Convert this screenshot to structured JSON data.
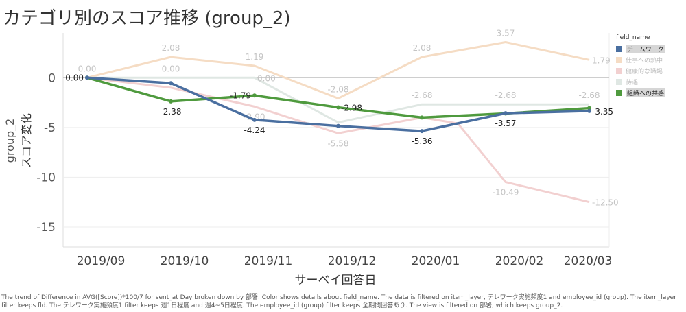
{
  "title": "カテゴリ別のスコア推移 (group_2)",
  "chart_data": {
    "type": "line",
    "xlabel": "サーベイ回答日",
    "ylabel_line1": "group_2",
    "ylabel_line2": "スコア変化",
    "categories": [
      "2019/09",
      "2019/10",
      "2019/11",
      "2019/12",
      "2020/01",
      "2020/02",
      "2020/03"
    ],
    "y_ticks": [
      "0",
      "-5",
      "-10",
      "-15"
    ],
    "ylim": [
      -17,
      4.5
    ],
    "grid": true,
    "legend_position": "right",
    "series": [
      {
        "name": "仕事への熱中",
        "color": "#f5dcc4",
        "highlighted": false,
        "points": [
          [
            0,
            0.0
          ],
          [
            1,
            2.08
          ],
          [
            2,
            1.19
          ],
          [
            3,
            -2.08
          ],
          [
            4,
            2.08
          ],
          [
            5,
            3.57
          ],
          [
            6,
            1.79
          ]
        ],
        "labels": [
          {
            "i": 0,
            "text": "0.00",
            "pos": "above"
          },
          {
            "i": 1,
            "text": "2.08",
            "pos": "above"
          },
          {
            "i": 2,
            "text": "1.19",
            "pos": "above"
          },
          {
            "i": 3,
            "text": "-2.08",
            "pos": "above"
          },
          {
            "i": 4,
            "text": "2.08",
            "pos": "above"
          },
          {
            "i": 5,
            "text": "3.57",
            "pos": "above"
          },
          {
            "i": 6,
            "text": "1.79",
            "pos": "right"
          }
        ]
      },
      {
        "name": "健康的な職場",
        "color": "#f2d0d0",
        "highlighted": false,
        "points": [
          [
            0,
            0.0
          ],
          [
            1,
            -1.0
          ],
          [
            2,
            -2.9
          ],
          [
            3,
            -5.58
          ],
          [
            4,
            -4.0
          ],
          [
            4.43,
            -4.6
          ],
          [
            5,
            -10.49
          ],
          [
            6,
            -12.5
          ]
        ],
        "labels": [
          {
            "i": 2,
            "text": "-2.90",
            "pos": "below"
          },
          {
            "i": 3,
            "text": "-5.58",
            "pos": "below"
          },
          {
            "i": 6,
            "text": "-10.49",
            "pos": "below",
            "x": 5
          },
          {
            "i": 7,
            "text": "-12.50",
            "pos": "right"
          }
        ]
      },
      {
        "name": "待遇",
        "color": "#dfe7e3",
        "highlighted": false,
        "points": [
          [
            0,
            0.0
          ],
          [
            1,
            0.0
          ],
          [
            2,
            0.0
          ],
          [
            3,
            -4.5
          ],
          [
            4,
            -2.68
          ],
          [
            5,
            -2.68
          ],
          [
            6,
            -2.68
          ]
        ],
        "labels": [
          {
            "i": 1,
            "text": "0.00",
            "pos": "above"
          },
          {
            "i": 2,
            "text": "0.00",
            "pos": "right"
          },
          {
            "i": 4,
            "text": "-2.68",
            "pos": "above"
          },
          {
            "i": 5,
            "text": "-2.68",
            "pos": "above"
          },
          {
            "i": 6,
            "text": "-2.68",
            "pos": "above"
          }
        ]
      },
      {
        "name": "組織への共感",
        "color": "#4f9a3e",
        "highlighted": true,
        "points": [
          [
            0,
            0.0
          ],
          [
            1,
            -2.38
          ],
          [
            2,
            -1.79
          ],
          [
            3,
            -2.98
          ],
          [
            4,
            -4.0
          ],
          [
            5,
            -3.6
          ],
          [
            6,
            -3.05
          ]
        ],
        "labels": [
          {
            "i": 1,
            "text": "-2.38",
            "pos": "below"
          },
          {
            "i": 2,
            "text": "-1.79",
            "pos": "left"
          },
          {
            "i": 3,
            "text": "-2.98",
            "pos": "right"
          }
        ]
      },
      {
        "name": "チームワーク",
        "color": "#4a6fa0",
        "highlighted": true,
        "points": [
          [
            0,
            0.0
          ],
          [
            1,
            -0.55
          ],
          [
            2,
            -4.24
          ],
          [
            3,
            -4.85
          ],
          [
            4,
            -5.36
          ],
          [
            5,
            -3.57
          ],
          [
            6,
            -3.35
          ]
        ],
        "labels": [
          {
            "i": 0,
            "text": "0.00",
            "pos": "left"
          },
          {
            "i": 2,
            "text": "-4.24",
            "pos": "below"
          },
          {
            "i": 4,
            "text": "-5.36",
            "pos": "below"
          },
          {
            "i": 5,
            "text": "-3.57",
            "pos": "below"
          },
          {
            "i": 6,
            "text": "-3.35",
            "pos": "right"
          }
        ]
      }
    ]
  },
  "legend": {
    "title": "field_name",
    "items": [
      {
        "label": "チームワーク",
        "color": "#4a6fa0",
        "highlighted": true
      },
      {
        "label": "仕事への熱中",
        "color": "#f5dcc4",
        "highlighted": false
      },
      {
        "label": "健康的な職場",
        "color": "#f2d0d0",
        "highlighted": false
      },
      {
        "label": "待遇",
        "color": "#dfe7e3",
        "highlighted": false
      },
      {
        "label": "組織への共感",
        "color": "#4f9a3e",
        "highlighted": true
      }
    ]
  },
  "footer": "The trend of Difference in AVG([Score])*100/7 for sent_at Day broken down by 部署.  Color shows details about field_name. The data is filtered on item_layer, テレワーク実施頻度1 and employee_id (group). The item_layer filter keeps fld. The テレワーク実施頻度1 filter keeps 週1日程度 and 週4~5日程度. The employee_id (group) filter keeps 全期間回答あり. The view is filtered on 部署, which keeps group_2."
}
